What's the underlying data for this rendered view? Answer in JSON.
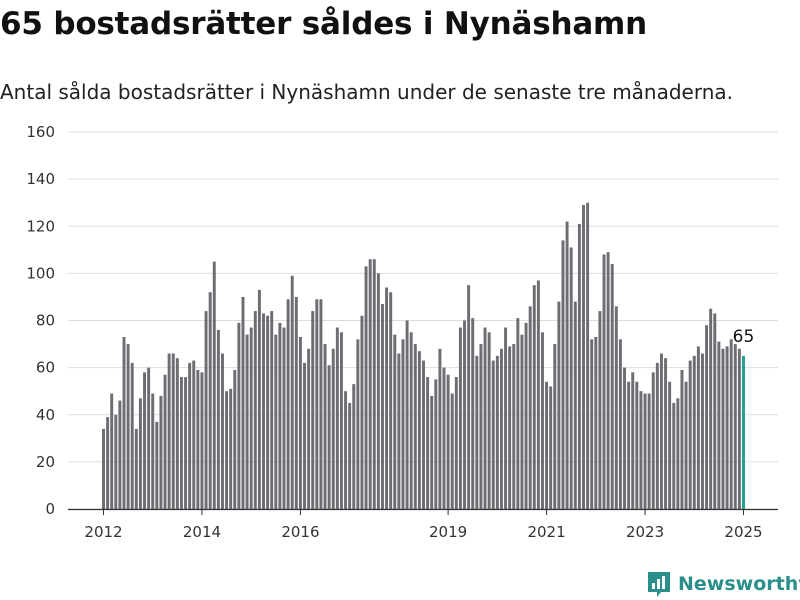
{
  "title": "65 bostadsrätter såldes i Nynäshamn",
  "subtitle": "Antal sålda bostadsrätter i Nynäshamn under de senaste tre månaderna.",
  "brand": {
    "name": "Newsworthy",
    "icon": "newsworthy-logo-icon"
  },
  "colors": {
    "bar": "#6e6d73",
    "highlight": "#20a090",
    "grid": "#dddddd",
    "brand": "#2a8f8a"
  },
  "chart_data": {
    "type": "bar",
    "title": "65 bostadsrätter såldes i Nynäshamn",
    "subtitle": "Antal sålda bostadsrätter i Nynäshamn under de senaste tre månaderna.",
    "ylim": [
      0,
      160
    ],
    "yticks": [
      0,
      20,
      40,
      60,
      80,
      100,
      120,
      140,
      160
    ],
    "xticks": [
      "2012",
      "2014",
      "2016",
      "2019",
      "2021",
      "2023",
      "2025"
    ],
    "grid": true,
    "highlight_label": "65",
    "values": [
      34,
      39,
      49,
      40,
      46,
      73,
      70,
      62,
      34,
      47,
      58,
      60,
      49,
      37,
      48,
      57,
      66,
      66,
      64,
      56,
      56,
      62,
      63,
      59,
      58,
      84,
      92,
      105,
      76,
      66,
      50,
      51,
      59,
      79,
      90,
      74,
      77,
      84,
      93,
      83,
      82,
      84,
      74,
      79,
      77,
      89,
      99,
      90,
      73,
      62,
      68,
      84,
      89,
      89,
      70,
      61,
      68,
      77,
      75,
      50,
      45,
      53,
      72,
      82,
      103,
      106,
      106,
      100,
      87,
      94,
      92,
      74,
      66,
      72,
      80,
      75,
      70,
      67,
      63,
      56,
      48,
      55,
      68,
      60,
      57,
      49,
      56,
      77,
      80,
      95,
      81,
      65,
      70,
      77,
      75,
      63,
      65,
      68,
      77,
      69,
      70,
      81,
      74,
      79,
      86,
      95,
      97,
      75,
      54,
      52,
      70,
      88,
      114,
      122,
      111,
      88,
      121,
      129,
      130,
      72,
      73,
      84,
      108,
      109,
      104,
      86,
      72,
      60,
      54,
      58,
      54,
      50,
      49,
      49,
      58,
      62,
      66,
      64,
      54,
      45,
      47,
      59,
      54,
      63,
      65,
      69,
      66,
      78,
      85,
      83,
      71,
      68,
      69,
      72,
      70,
      68,
      65
    ]
  }
}
